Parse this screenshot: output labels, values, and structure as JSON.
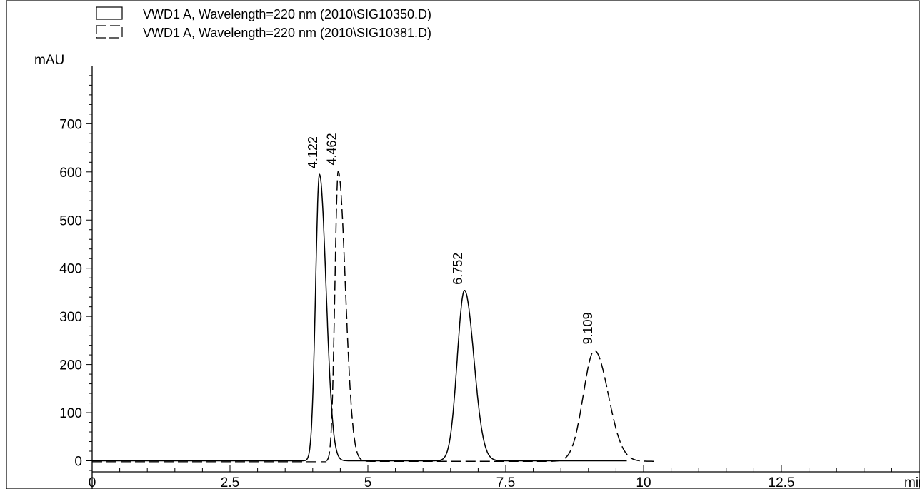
{
  "chart_data": {
    "type": "line",
    "xlabel": "min",
    "ylabel": "mAU",
    "xlim": [
      0,
      15
    ],
    "ylim": [
      -10,
      830
    ],
    "x_ticks": [
      0,
      2.5,
      5,
      7.5,
      10,
      12.5
    ],
    "x_tick_labels": [
      "0",
      "2.5",
      "5",
      "7.5",
      "10",
      "12.5"
    ],
    "y_ticks": [
      0,
      100,
      200,
      300,
      400,
      500,
      600,
      700
    ],
    "y_tick_labels": [
      "0",
      "100",
      "200",
      "300",
      "400",
      "500",
      "600",
      "700"
    ],
    "legend_position": "top-left",
    "series": [
      {
        "name": "VWD1 A, Wavelength=220 nm (2010\\SIG10350.D)",
        "style": "solid",
        "baseline": 0,
        "peaks": [
          {
            "rt": 4.122,
            "height": 595,
            "width_left": 0.07,
            "width_right": 0.12
          },
          {
            "rt": 6.752,
            "height": 354,
            "width_left": 0.13,
            "width_right": 0.17
          }
        ]
      },
      {
        "name": "VWD1 A, Wavelength=220 nm (2010\\SIG10381.D)",
        "style": "dashed",
        "baseline": -1,
        "peaks": [
          {
            "rt": 4.462,
            "height": 602,
            "width_left": 0.06,
            "width_right": 0.13
          },
          {
            "rt": 9.109,
            "height": 230,
            "width_left": 0.2,
            "width_right": 0.25
          }
        ]
      }
    ],
    "annotations": [
      {
        "text": "4.122",
        "x": 4.122,
        "y": 595
      },
      {
        "text": "4.462",
        "x": 4.462,
        "y": 602
      },
      {
        "text": "6.752",
        "x": 6.752,
        "y": 354
      },
      {
        "text": "9.109",
        "x": 9.109,
        "y": 230
      }
    ]
  }
}
